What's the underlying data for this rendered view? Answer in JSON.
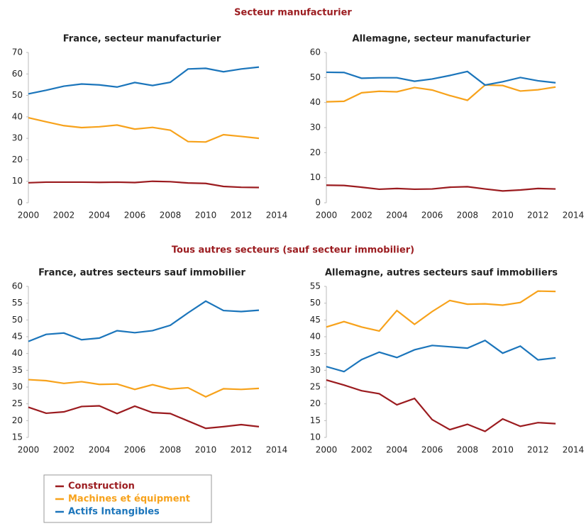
{
  "sections": [
    "Secteur manufacturier",
    "Tous autres secteurs (sauf secteur immobilier)"
  ],
  "chart_data": [
    {
      "type": "line",
      "title": "France, secteur manufacturier",
      "x": [
        2000,
        2001,
        2002,
        2003,
        2004,
        2005,
        2006,
        2007,
        2008,
        2009,
        2010,
        2011,
        2012,
        2013
      ],
      "xlim": [
        2000,
        2014
      ],
      "xticks": [
        2000,
        2002,
        2004,
        2006,
        2008,
        2010,
        2012,
        2014
      ],
      "ylim": [
        0,
        70
      ],
      "yticks": [
        0,
        10,
        20,
        30,
        40,
        50,
        60,
        70
      ],
      "series": [
        {
          "name": "Construction",
          "color": "#9b1b1f",
          "values": [
            9.3,
            9.6,
            9.6,
            9.6,
            9.5,
            9.6,
            9.4,
            10,
            9.8,
            9.2,
            9,
            7.6,
            7.2,
            7.1
          ]
        },
        {
          "name": "Machines et équipment",
          "color": "#f7a21b",
          "values": [
            39.6,
            37.7,
            35.9,
            35,
            35.4,
            36.2,
            34.3,
            35.1,
            33.8,
            28.5,
            28.3,
            31.7,
            30.9,
            30
          ]
        },
        {
          "name": "Actifs Intangibles",
          "color": "#1b75bb",
          "values": [
            50.7,
            52.4,
            54.3,
            55.3,
            54.9,
            53.9,
            56,
            54.6,
            56.1,
            62.3,
            62.6,
            61,
            62.3,
            63.2
          ]
        }
      ]
    },
    {
      "type": "line",
      "title": "Allemagne, secteur manufacturier",
      "x": [
        2000,
        2001,
        2002,
        2003,
        2004,
        2005,
        2006,
        2007,
        2008,
        2009,
        2010,
        2011,
        2012,
        2013
      ],
      "xlim": [
        2000,
        2014
      ],
      "xticks": [
        2000,
        2002,
        2004,
        2006,
        2008,
        2010,
        2012,
        2014
      ],
      "ylim": [
        0,
        60
      ],
      "yticks": [
        0,
        10,
        20,
        30,
        40,
        50,
        60
      ],
      "series": [
        {
          "name": "Construction",
          "color": "#9b1b1f",
          "values": [
            7,
            6.9,
            6.2,
            5.4,
            5.7,
            5.4,
            5.5,
            6.2,
            6.4,
            5.5,
            4.7,
            5.1,
            5.7,
            5.5
          ]
        },
        {
          "name": "Machines et équipment",
          "color": "#f7a21b",
          "values": [
            40.3,
            40.5,
            43.9,
            44.5,
            44.3,
            46,
            45,
            42.8,
            40.9,
            47,
            46.8,
            44.6,
            45.1,
            46.2
          ]
        },
        {
          "name": "Actifs Intangibles",
          "color": "#1b75bb",
          "values": [
            52.1,
            52,
            49.7,
            49.9,
            49.9,
            48.5,
            49.4,
            50.8,
            52.4,
            47,
            48.3,
            50,
            48.7,
            47.9
          ]
        }
      ]
    },
    {
      "type": "line",
      "title": "France, autres secteurs sauf immobilier",
      "x": [
        2000,
        2001,
        2002,
        2003,
        2004,
        2005,
        2006,
        2007,
        2008,
        2009,
        2010,
        2011,
        2012,
        2013
      ],
      "xlim": [
        2000,
        2014
      ],
      "xticks": [
        2000,
        2002,
        2004,
        2006,
        2008,
        2010,
        2012,
        2014
      ],
      "ylim": [
        15,
        60
      ],
      "yticks": [
        15,
        20,
        25,
        30,
        35,
        40,
        45,
        50,
        55,
        60
      ],
      "series": [
        {
          "name": "Construction",
          "color": "#9b1b1f",
          "values": [
            24,
            22.2,
            22.6,
            24.2,
            24.4,
            22.1,
            24.3,
            22.4,
            22.1,
            19.9,
            17.7,
            18.2,
            18.8,
            18.2
          ]
        },
        {
          "name": "Machines et équipment",
          "color": "#f7a21b",
          "values": [
            32.2,
            31.9,
            31.1,
            31.6,
            30.8,
            30.9,
            29.3,
            30.7,
            29.4,
            29.8,
            27.1,
            29.5,
            29.3,
            29.6
          ]
        },
        {
          "name": "Actifs Intangibles",
          "color": "#1b75bb",
          "values": [
            43.6,
            45.7,
            46.1,
            44.1,
            44.6,
            46.8,
            46.2,
            46.8,
            48.4,
            52.1,
            55.6,
            52.8,
            52.5,
            52.9
          ]
        }
      ]
    },
    {
      "type": "line",
      "title": "Allemagne, autres secteurs sauf immobiliers",
      "x": [
        2000,
        2001,
        2002,
        2003,
        2004,
        2005,
        2006,
        2007,
        2008,
        2009,
        2010,
        2011,
        2012,
        2013
      ],
      "xlim": [
        2000,
        2014
      ],
      "xticks": [
        2000,
        2002,
        2004,
        2006,
        2008,
        2010,
        2012,
        2014
      ],
      "ylim": [
        10,
        55
      ],
      "yticks": [
        10,
        15,
        20,
        25,
        30,
        35,
        40,
        45,
        50,
        55
      ],
      "series": [
        {
          "name": "Construction",
          "color": "#9b1b1f",
          "values": [
            27.1,
            25.6,
            23.9,
            23,
            19.7,
            21.6,
            15.3,
            12.3,
            13.9,
            11.8,
            15.5,
            13.3,
            14.4,
            14.1
          ]
        },
        {
          "name": "Machines et équipment",
          "color": "#f7a21b",
          "values": [
            42.9,
            44.5,
            42.9,
            41.7,
            47.8,
            43.7,
            47.5,
            50.8,
            49.7,
            49.8,
            49.4,
            50.2,
            53.6,
            53.5
          ]
        },
        {
          "name": "Actifs Intangibles",
          "color": "#1b75bb",
          "values": [
            31.1,
            29.6,
            33.2,
            35.4,
            33.8,
            36.1,
            37.4,
            37,
            36.6,
            38.9,
            35.1,
            37.2,
            33.1,
            33.7
          ]
        }
      ]
    }
  ]
}
